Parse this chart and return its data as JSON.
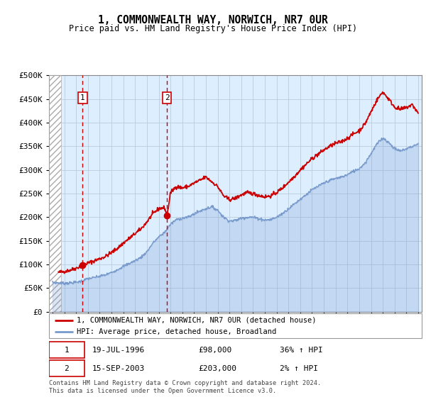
{
  "title": "1, COMMONWEALTH WAY, NORWICH, NR7 0UR",
  "subtitle": "Price paid vs. HM Land Registry's House Price Index (HPI)",
  "legend_line1": "1, COMMONWEALTH WAY, NORWICH, NR7 0UR (detached house)",
  "legend_line2": "HPI: Average price, detached house, Broadland",
  "transaction1_date": "19-JUL-1996",
  "transaction1_price": 98000,
  "transaction1_label": "36% ↑ HPI",
  "transaction2_date": "15-SEP-2003",
  "transaction2_price": 203000,
  "transaction2_label": "2% ↑ HPI",
  "footer": "Contains HM Land Registry data © Crown copyright and database right 2024.\nThis data is licensed under the Open Government Licence v3.0.",
  "x_start_year": 1994,
  "x_end_year": 2025,
  "ylim": [
    0,
    500000
  ],
  "yticks": [
    0,
    50000,
    100000,
    150000,
    200000,
    250000,
    300000,
    350000,
    400000,
    450000,
    500000
  ],
  "transaction1_year": 1996.55,
  "transaction2_year": 2003.71,
  "hpi_color": "#7799cc",
  "price_color": "#cc0000",
  "hatch_color": "#aaaaaa",
  "bg_color": "#ddeeff",
  "grid_color": "#bbccdd",
  "hpi_years": [
    1994.0,
    1994.5,
    1995.0,
    1995.5,
    1996.0,
    1996.5,
    1997.0,
    1997.5,
    1998.0,
    1998.5,
    1999.0,
    1999.5,
    2000.0,
    2000.5,
    2001.0,
    2001.5,
    2002.0,
    2002.5,
    2003.0,
    2003.5,
    2004.0,
    2004.5,
    2005.0,
    2005.5,
    2006.0,
    2006.5,
    2007.0,
    2007.5,
    2008.0,
    2008.5,
    2009.0,
    2009.5,
    2010.0,
    2010.5,
    2011.0,
    2011.5,
    2012.0,
    2012.5,
    2013.0,
    2013.5,
    2014.0,
    2014.5,
    2015.0,
    2015.5,
    2016.0,
    2016.5,
    2017.0,
    2017.5,
    2018.0,
    2018.5,
    2019.0,
    2019.5,
    2020.0,
    2020.5,
    2021.0,
    2021.5,
    2022.0,
    2022.5,
    2023.0,
    2023.5,
    2024.0,
    2024.5,
    2025.0
  ],
  "hpi_vals": [
    62000,
    61000,
    60000,
    61000,
    62000,
    65000,
    70000,
    72000,
    75000,
    78000,
    83000,
    89000,
    96000,
    102000,
    108000,
    115000,
    127000,
    145000,
    158000,
    168000,
    185000,
    195000,
    198000,
    200000,
    207000,
    213000,
    218000,
    222000,
    215000,
    200000,
    192000,
    193000,
    198000,
    200000,
    200000,
    197000,
    194000,
    195000,
    200000,
    208000,
    218000,
    228000,
    238000,
    248000,
    258000,
    265000,
    272000,
    278000,
    282000,
    285000,
    290000,
    297000,
    303000,
    315000,
    335000,
    355000,
    368000,
    358000,
    345000,
    340000,
    345000,
    350000,
    355000
  ],
  "prop_years": [
    1994.5,
    1995.0,
    1995.5,
    1996.0,
    1996.55,
    1997.0,
    1997.5,
    1998.0,
    1998.5,
    1999.0,
    1999.5,
    2000.0,
    2000.5,
    2001.0,
    2001.5,
    2002.0,
    2002.5,
    2003.0,
    2003.5,
    2003.71,
    2004.0,
    2004.5,
    2005.0,
    2005.5,
    2006.0,
    2006.5,
    2007.0,
    2007.5,
    2008.0,
    2008.5,
    2009.0,
    2009.5,
    2010.0,
    2010.5,
    2011.0,
    2011.5,
    2012.0,
    2012.5,
    2013.0,
    2013.5,
    2014.0,
    2014.5,
    2015.0,
    2015.5,
    2016.0,
    2016.5,
    2017.0,
    2017.5,
    2018.0,
    2018.5,
    2019.0,
    2019.5,
    2020.0,
    2020.5,
    2021.0,
    2021.5,
    2022.0,
    2022.5,
    2023.0,
    2023.5,
    2024.0,
    2024.5,
    2025.0
  ],
  "prop_vals": [
    83000,
    85000,
    88000,
    92000,
    98000,
    103000,
    107000,
    112000,
    117000,
    125000,
    134000,
    145000,
    155000,
    165000,
    175000,
    190000,
    207000,
    218000,
    220000,
    203000,
    252000,
    265000,
    262000,
    265000,
    272000,
    278000,
    285000,
    275000,
    265000,
    245000,
    237000,
    240000,
    247000,
    252000,
    250000,
    246000,
    243000,
    245000,
    252000,
    262000,
    274000,
    286000,
    300000,
    312000,
    324000,
    333000,
    342000,
    350000,
    356000,
    360000,
    367000,
    376000,
    383000,
    398000,
    423000,
    448000,
    465000,
    450000,
    433000,
    428000,
    432000,
    438000,
    420000
  ]
}
